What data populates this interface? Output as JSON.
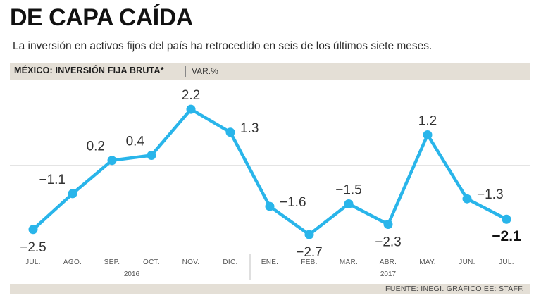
{
  "header": {
    "title": "DE CAPA CAÍDA",
    "subtitle": "La inversión en activos fijos del país ha retrocedido en seis de los últimos siete meses."
  },
  "label_bar": {
    "series_label": "MÉXICO: INVERSIÓN FIJA BRUTA*",
    "unit_label": "VAR.%"
  },
  "footer": {
    "source": "FUENTE: INEGI. GRÁFICO EE: STAFF."
  },
  "colors": {
    "line": "#29b5ea",
    "band": "#e4dfd6",
    "zero_line": "#c8c8c8",
    "divider": "#bfbfbf"
  },
  "chart_data": {
    "type": "line",
    "title": "MÉXICO: INVERSIÓN FIJA BRUTA*",
    "ylabel": "VAR.%",
    "xlabel": "",
    "categories": [
      "JUL.",
      "AGO.",
      "SEP.",
      "OCT.",
      "NOV.",
      "DIC.",
      "ENE.",
      "FEB.",
      "MAR.",
      "ABR.",
      "MAY.",
      "JUN.",
      "JUL."
    ],
    "value_labels": [
      "-2.5",
      "-1.1",
      "0.2",
      "0.4",
      "2.2",
      "1.3",
      "-1.6",
      "-2.7",
      "-1.5",
      "-2.3",
      "1.2",
      "-1.3",
      "-2.1"
    ],
    "series": [
      {
        "name": "Inversión fija bruta, var.%",
        "values": [
          -2.5,
          -1.1,
          0.2,
          0.4,
          2.2,
          1.3,
          -1.6,
          -2.7,
          -1.5,
          -2.3,
          1.2,
          -1.3,
          -2.1
        ]
      }
    ],
    "year_groups": [
      {
        "label": "2016",
        "months": 6
      },
      {
        "label": "2017",
        "months": 7
      }
    ],
    "ylim": [
      -3,
      3
    ],
    "zero_line": true
  }
}
